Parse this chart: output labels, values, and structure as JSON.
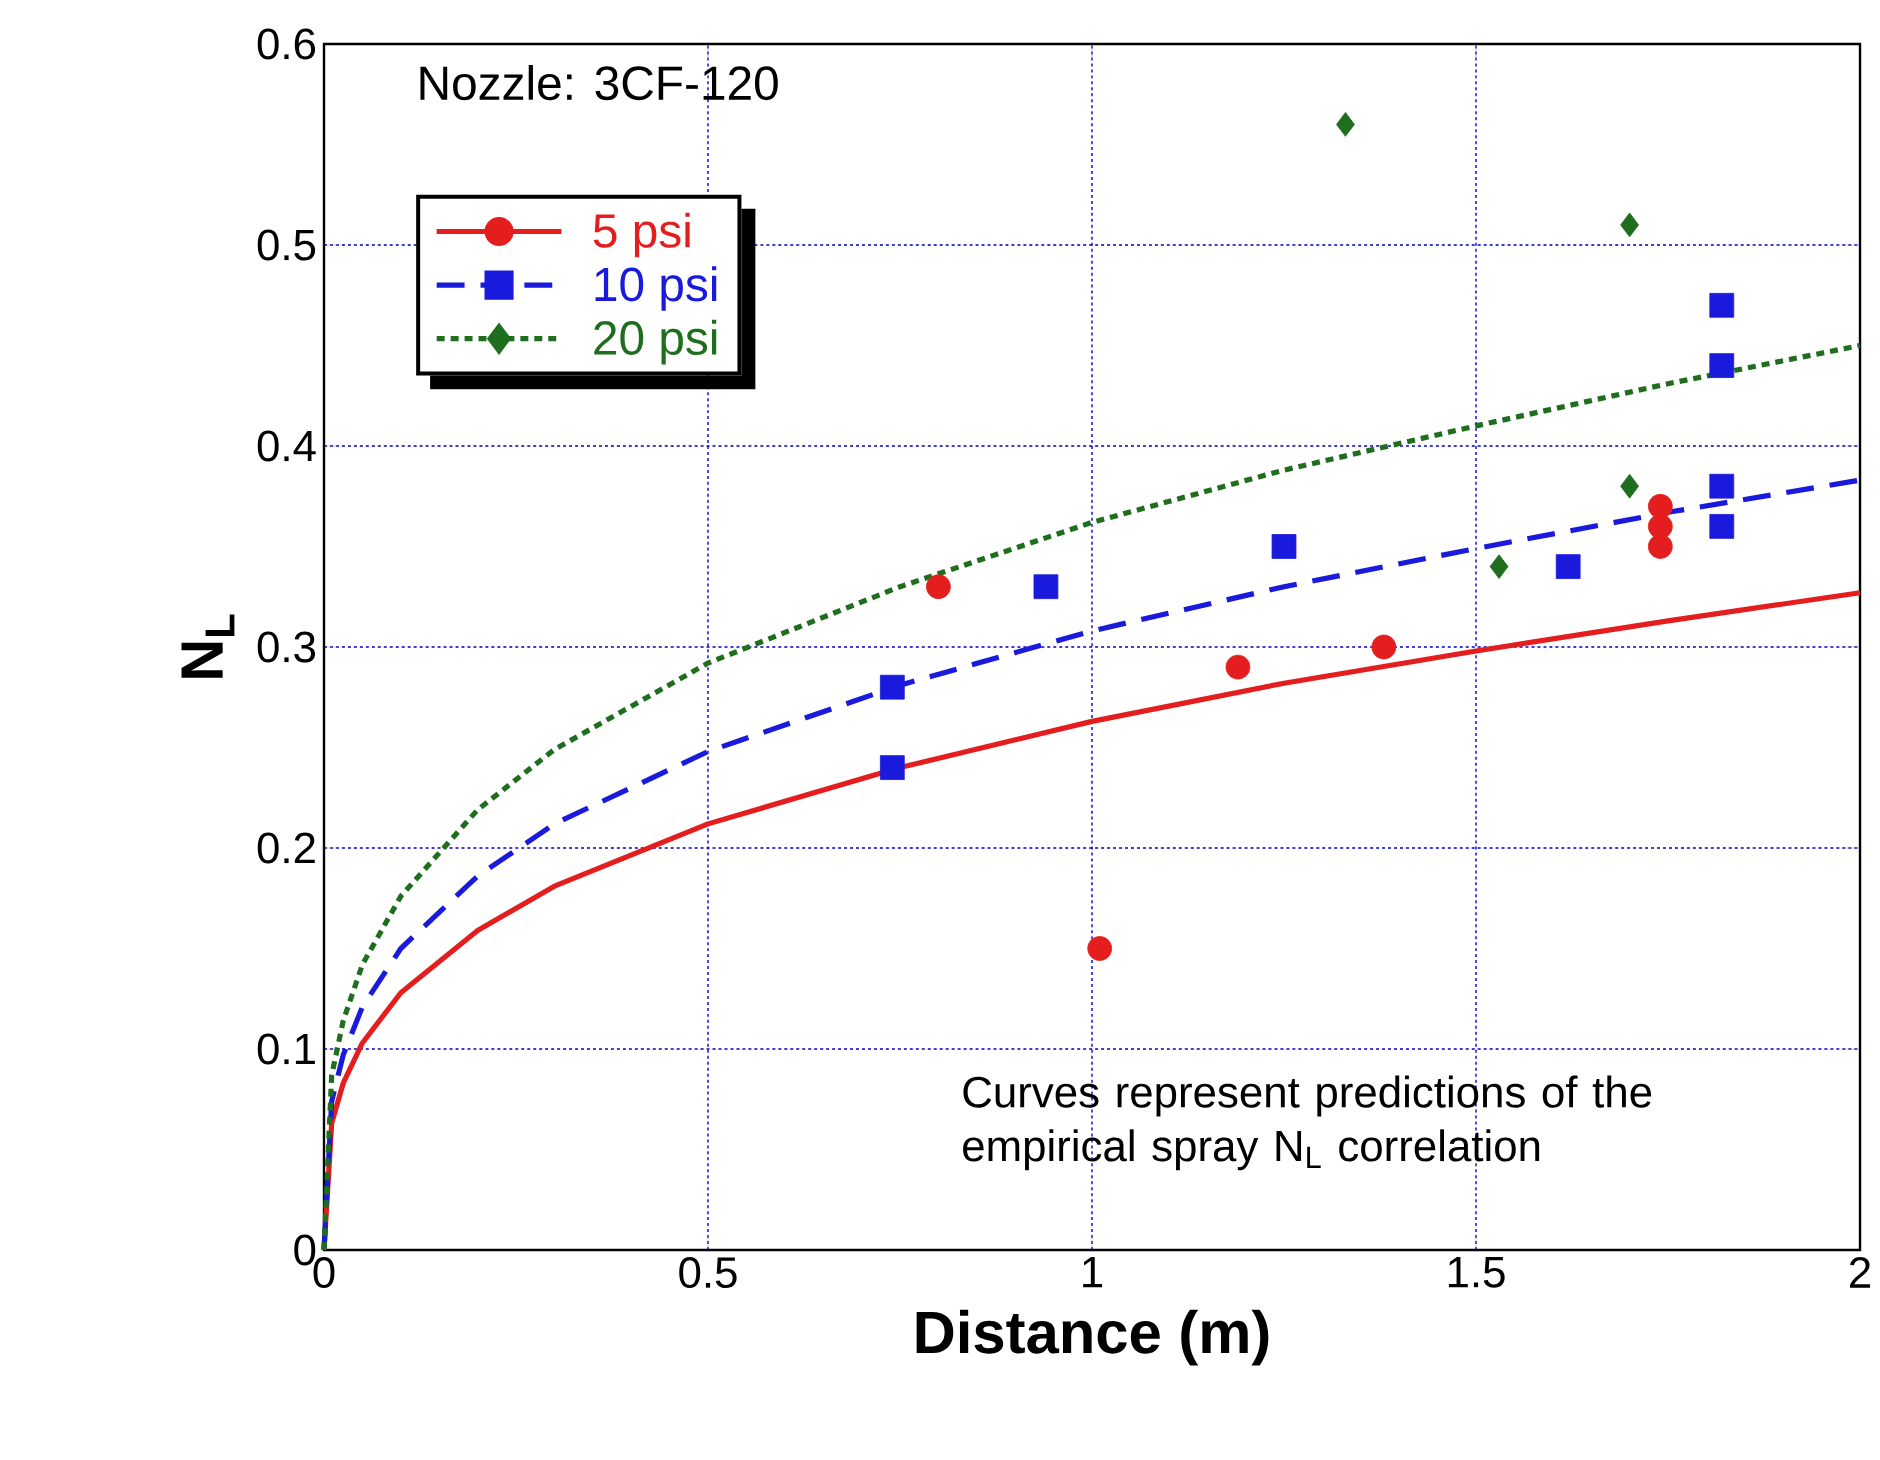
{
  "chart_data": {
    "type": "scatter",
    "xlabel": "Distance (m)",
    "ylabel": "N$_{L}$",
    "xlim": [
      0,
      2
    ],
    "ylim": [
      0,
      0.6
    ],
    "xticks": [
      0,
      0.5,
      1,
      1.5,
      2
    ],
    "yticks": [
      0,
      0.1,
      0.2,
      0.3,
      0.4,
      0.5,
      0.6
    ],
    "grid": true,
    "legend": "top left",
    "annotations": [
      "Nozzle: 3CF-120",
      "Curves represent predictions of the empirical spray N$_{L}$ correlation"
    ],
    "series": [
      {
        "name": "5 psi",
        "marker": "circle",
        "color": "#e41e1e",
        "x": [
          0.8,
          1.01,
          1.19,
          1.38,
          1.74,
          1.74,
          1.74
        ],
        "values": [
          0.33,
          0.15,
          0.29,
          0.3,
          0.37,
          0.36,
          0.35
        ]
      },
      {
        "name": "10 psi",
        "marker": "square",
        "color": "#1a1adc",
        "x": [
          0.74,
          0.74,
          0.94,
          1.25,
          1.62,
          1.82,
          1.82,
          1.82,
          1.82
        ],
        "values": [
          0.28,
          0.24,
          0.33,
          0.35,
          0.34,
          0.47,
          0.44,
          0.38,
          0.36
        ]
      },
      {
        "name": "20 psi",
        "marker": "diamond",
        "color": "#1e6e1e",
        "x": [
          1.33,
          1.7,
          1.7,
          1.53
        ],
        "values": [
          0.56,
          0.51,
          0.38,
          0.34
        ]
      },
      {
        "type": "line",
        "line_style": "solid",
        "color": "#e41e1e",
        "x": [
          0,
          0.01,
          0.025,
          0.05,
          0.1,
          0.2,
          0.3,
          0.5,
          0.75,
          1,
          1.25,
          1.5,
          1.75,
          2
        ],
        "values": [
          0,
          0.063,
          0.083,
          0.103,
          0.128,
          0.159,
          0.181,
          0.212,
          0.24,
          0.263,
          0.282,
          0.298,
          0.313,
          0.327
        ]
      },
      {
        "type": "line",
        "line_style": "dashed",
        "color": "#1a1adc",
        "x": [
          0,
          0.01,
          0.025,
          0.05,
          0.1,
          0.2,
          0.3,
          0.5,
          0.75,
          1,
          1.25,
          1.5,
          1.75,
          2
        ],
        "values": [
          0,
          0.074,
          0.097,
          0.121,
          0.15,
          0.186,
          0.212,
          0.248,
          0.281,
          0.308,
          0.33,
          0.349,
          0.367,
          0.383
        ]
      },
      {
        "type": "line",
        "line_style": "dotted",
        "color": "#1e6e1e",
        "x": [
          0,
          0.01,
          0.025,
          0.05,
          0.1,
          0.2,
          0.3,
          0.5,
          0.75,
          1,
          1.25,
          1.5,
          1.75,
          2
        ],
        "values": [
          0,
          0.087,
          0.114,
          0.142,
          0.176,
          0.219,
          0.249,
          0.292,
          0.33,
          0.362,
          0.388,
          0.41,
          0.431,
          0.45
        ]
      }
    ]
  }
}
